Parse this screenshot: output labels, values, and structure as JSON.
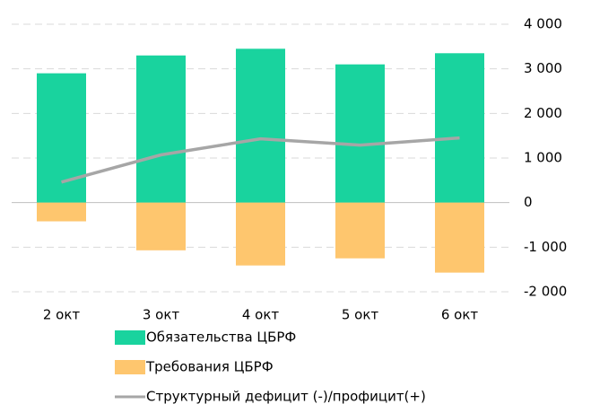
{
  "chart_data": {
    "type": "bar",
    "categories": [
      "2 окт",
      "3 окт",
      "4 окт",
      "5 окт",
      "6 окт"
    ],
    "series": [
      {
        "name": "Обязательства ЦБРФ",
        "type": "bar",
        "color": "#19d39e",
        "values": [
          2900,
          3300,
          3450,
          3100,
          3350
        ]
      },
      {
        "name": "Требования ЦБРФ",
        "type": "bar",
        "color": "#fec66e",
        "values": [
          -420,
          -1070,
          -1410,
          -1250,
          -1570
        ]
      },
      {
        "name": "Структурный дефицит (-)/профицит(+)",
        "type": "line",
        "color": "#a6a6a6",
        "values": [
          460,
          1070,
          1430,
          1290,
          1450
        ]
      }
    ],
    "ylim": [
      -2000,
      4000
    ],
    "yticks": [
      {
        "value": -2000,
        "label": "-2 000"
      },
      {
        "value": -1000,
        "label": "-1 000"
      },
      0,
      {
        "value": 1000,
        "label": "1 000"
      },
      {
        "value": 2000,
        "label": "2 000"
      },
      {
        "value": 3000,
        "label": "3 000"
      },
      {
        "value": 4000,
        "label": "4 000"
      }
    ],
    "grid": true
  }
}
